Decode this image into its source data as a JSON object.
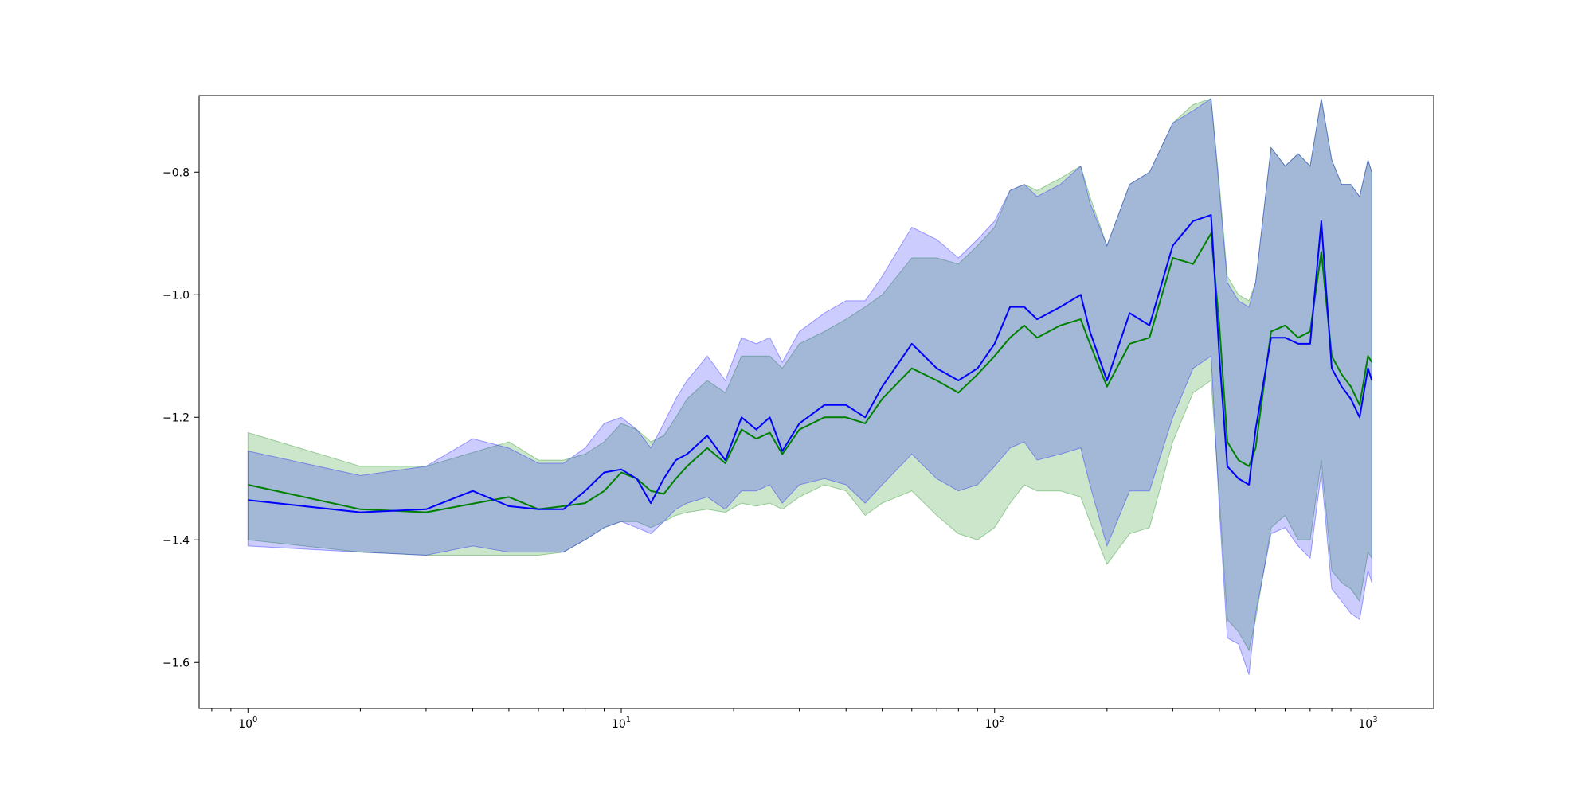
{
  "chart_data": {
    "type": "line",
    "title": "",
    "xlabel": "",
    "ylabel": "",
    "xscale": "log",
    "xlim": [
      0.74,
      1500
    ],
    "ylim": [
      -1.675,
      -0.675
    ],
    "grid": false,
    "legend": "none",
    "x_ticks": [
      {
        "value": 1,
        "base": "10",
        "exp": "0"
      },
      {
        "value": 10,
        "base": "10",
        "exp": "1"
      },
      {
        "value": 100,
        "base": "10",
        "exp": "2"
      },
      {
        "value": 1000,
        "base": "10",
        "exp": "3"
      }
    ],
    "y_ticks": [
      {
        "value": -0.8,
        "label": "−0.8"
      },
      {
        "value": -1.0,
        "label": "−1.0"
      },
      {
        "value": -1.2,
        "label": "−1.2"
      },
      {
        "value": -1.4,
        "label": "−1.4"
      },
      {
        "value": -1.6,
        "label": "−1.6"
      }
    ],
    "series": [
      {
        "color": "#008000",
        "band_color": "#008000",
        "band_alpha": 0.2,
        "x": [
          1,
          2,
          3,
          5,
          6,
          7,
          8,
          9,
          10,
          11,
          12,
          13,
          14,
          15,
          17,
          19,
          21,
          23,
          25,
          27,
          30,
          35,
          40,
          45,
          50,
          60,
          70,
          80,
          90,
          100,
          110,
          120,
          130,
          150,
          170,
          180,
          200,
          230,
          260,
          300,
          340,
          380,
          400,
          420,
          450,
          480,
          500,
          550,
          600,
          650,
          700,
          750,
          800,
          850,
          900,
          950,
          1000,
          1024
        ],
        "y": [
          -1.31,
          -1.35,
          -1.355,
          -1.33,
          -1.35,
          -1.345,
          -1.34,
          -1.32,
          -1.29,
          -1.3,
          -1.32,
          -1.325,
          -1.3,
          -1.28,
          -1.25,
          -1.275,
          -1.22,
          -1.235,
          -1.225,
          -1.26,
          -1.22,
          -1.2,
          -1.2,
          -1.21,
          -1.17,
          -1.12,
          -1.14,
          -1.16,
          -1.13,
          -1.1,
          -1.07,
          -1.05,
          -1.07,
          -1.05,
          -1.04,
          -1.08,
          -1.15,
          -1.08,
          -1.07,
          -0.94,
          -0.95,
          -0.9,
          -1.05,
          -1.24,
          -1.27,
          -1.28,
          -1.25,
          -1.06,
          -1.05,
          -1.07,
          -1.06,
          -0.93,
          -1.1,
          -1.13,
          -1.15,
          -1.18,
          -1.1,
          -1.11
        ],
        "lower": [
          -1.4,
          -1.42,
          -1.425,
          -1.425,
          -1.425,
          -1.42,
          -1.4,
          -1.38,
          -1.37,
          -1.37,
          -1.38,
          -1.37,
          -1.36,
          -1.355,
          -1.35,
          -1.355,
          -1.34,
          -1.345,
          -1.34,
          -1.35,
          -1.33,
          -1.31,
          -1.32,
          -1.36,
          -1.34,
          -1.32,
          -1.36,
          -1.39,
          -1.4,
          -1.38,
          -1.34,
          -1.31,
          -1.32,
          -1.32,
          -1.33,
          -1.37,
          -1.44,
          -1.39,
          -1.38,
          -1.24,
          -1.16,
          -1.14,
          -1.33,
          -1.53,
          -1.55,
          -1.58,
          -1.53,
          -1.38,
          -1.36,
          -1.4,
          -1.4,
          -1.27,
          -1.45,
          -1.47,
          -1.48,
          -1.5,
          -1.42,
          -1.43
        ],
        "upper": [
          -1.225,
          -1.28,
          -1.28,
          -1.24,
          -1.27,
          -1.27,
          -1.26,
          -1.24,
          -1.21,
          -1.22,
          -1.24,
          -1.23,
          -1.2,
          -1.17,
          -1.14,
          -1.16,
          -1.1,
          -1.1,
          -1.1,
          -1.12,
          -1.08,
          -1.06,
          -1.04,
          -1.02,
          -1.0,
          -0.94,
          -0.94,
          -0.95,
          -0.92,
          -0.89,
          -0.83,
          -0.82,
          -0.83,
          -0.81,
          -0.79,
          -0.84,
          -0.92,
          -0.82,
          -0.8,
          -0.72,
          -0.69,
          -0.68,
          -0.82,
          -0.97,
          -1.0,
          -1.01,
          -0.98,
          -0.76,
          -0.79,
          -0.77,
          -0.79,
          -0.68,
          -0.78,
          -0.82,
          -0.82,
          -0.84,
          -0.78,
          -0.8
        ]
      },
      {
        "color": "#0000ff",
        "band_color": "#0000ff",
        "band_alpha": 0.2,
        "x": [
          1,
          2,
          3,
          4,
          5,
          6,
          7,
          8,
          9,
          10,
          11,
          12,
          13,
          14,
          15,
          17,
          19,
          21,
          23,
          25,
          27,
          30,
          35,
          40,
          45,
          50,
          60,
          70,
          80,
          90,
          100,
          110,
          120,
          130,
          150,
          170,
          180,
          200,
          230,
          260,
          300,
          340,
          380,
          400,
          420,
          450,
          480,
          500,
          550,
          600,
          650,
          700,
          750,
          800,
          850,
          900,
          950,
          1000,
          1024
        ],
        "y": [
          -1.335,
          -1.355,
          -1.35,
          -1.32,
          -1.345,
          -1.35,
          -1.35,
          -1.32,
          -1.29,
          -1.285,
          -1.3,
          -1.34,
          -1.3,
          -1.27,
          -1.26,
          -1.23,
          -1.27,
          -1.2,
          -1.22,
          -1.2,
          -1.255,
          -1.21,
          -1.18,
          -1.18,
          -1.2,
          -1.15,
          -1.08,
          -1.12,
          -1.14,
          -1.12,
          -1.08,
          -1.02,
          -1.02,
          -1.04,
          -1.02,
          -1.0,
          -1.06,
          -1.14,
          -1.03,
          -1.05,
          -0.92,
          -0.88,
          -0.87,
          -1.1,
          -1.28,
          -1.3,
          -1.31,
          -1.22,
          -1.07,
          -1.07,
          -1.08,
          -1.08,
          -0.88,
          -1.12,
          -1.15,
          -1.17,
          -1.2,
          -1.12,
          -1.14
        ],
        "upper": [
          -1.255,
          -1.295,
          -1.28,
          -1.235,
          -1.25,
          -1.275,
          -1.275,
          -1.25,
          -1.21,
          -1.2,
          -1.22,
          -1.25,
          -1.21,
          -1.17,
          -1.14,
          -1.1,
          -1.14,
          -1.07,
          -1.08,
          -1.07,
          -1.11,
          -1.06,
          -1.03,
          -1.01,
          -1.01,
          -0.97,
          -0.89,
          -0.91,
          -0.94,
          -0.91,
          -0.88,
          -0.83,
          -0.82,
          -0.84,
          -0.82,
          -0.79,
          -0.85,
          -0.92,
          -0.82,
          -0.8,
          -0.72,
          -0.7,
          -0.68,
          -0.83,
          -0.98,
          -1.01,
          -1.02,
          -0.98,
          -0.76,
          -0.79,
          -0.77,
          -0.79,
          -0.68,
          -0.78,
          -0.82,
          -0.82,
          -0.84,
          -0.78,
          -0.8
        ],
        "lower": [
          -1.41,
          -1.42,
          -1.425,
          -1.41,
          -1.42,
          -1.42,
          -1.42,
          -1.4,
          -1.38,
          -1.37,
          -1.38,
          -1.39,
          -1.37,
          -1.35,
          -1.34,
          -1.33,
          -1.35,
          -1.32,
          -1.32,
          -1.31,
          -1.34,
          -1.31,
          -1.3,
          -1.31,
          -1.34,
          -1.31,
          -1.26,
          -1.3,
          -1.32,
          -1.31,
          -1.28,
          -1.25,
          -1.24,
          -1.27,
          -1.26,
          -1.25,
          -1.31,
          -1.41,
          -1.32,
          -1.32,
          -1.2,
          -1.12,
          -1.1,
          -1.35,
          -1.56,
          -1.57,
          -1.62,
          -1.52,
          -1.39,
          -1.38,
          -1.41,
          -1.43,
          -1.29,
          -1.48,
          -1.5,
          -1.52,
          -1.53,
          -1.45,
          -1.47
        ]
      }
    ]
  }
}
